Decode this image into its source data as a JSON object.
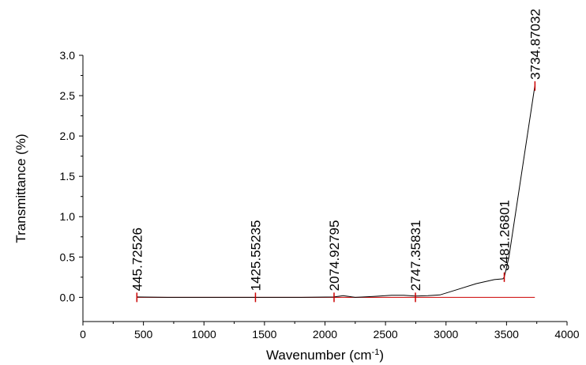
{
  "chart_data": {
    "type": "line",
    "xlabel": "Wavenumber (cm",
    "xlabel_sup": "-1",
    "xlabel_end": ")",
    "ylabel": "Transmittance (%)",
    "xlim": [
      0,
      4000
    ],
    "ylim": [
      -0.3,
      3.0
    ],
    "x_ticks": [
      0,
      500,
      1000,
      1500,
      2000,
      2500,
      3000,
      3500,
      4000
    ],
    "y_ticks": [
      0.0,
      0.5,
      1.0,
      1.5,
      2.0,
      2.5,
      3.0
    ],
    "x_tick_labels": [
      "0",
      "500",
      "1000",
      "1500",
      "2000",
      "2500",
      "3000",
      "3500",
      "4000"
    ],
    "y_tick_labels": [
      "0.0",
      "0.5",
      "1.0",
      "1.5",
      "2.0",
      "2.5",
      "3.0"
    ],
    "grid": false,
    "series": [
      {
        "color": "#000000",
        "x": [
          445,
          700,
          1000,
          1425,
          1800,
          2075,
          2150,
          2250,
          2400,
          2550,
          2650,
          2747,
          2850,
          2950,
          3100,
          3250,
          3400,
          3470,
          3481,
          3520,
          3734
        ],
        "y": [
          0.005,
          0.0,
          0.0,
          0.0,
          0.0,
          0.005,
          0.02,
          0.0,
          0.01,
          0.025,
          0.025,
          0.015,
          0.02,
          0.03,
          0.1,
          0.17,
          0.22,
          0.23,
          0.25,
          0.5,
          2.62
        ]
      }
    ],
    "baseline": {
      "color": "#cc0000",
      "x": [
        445,
        3734
      ],
      "y": 0.0
    },
    "peaks": [
      {
        "x": 445.72526,
        "label": "445.72526",
        "y": 0.0
      },
      {
        "x": 1425.55235,
        "label": "1425.55235",
        "y": 0.0
      },
      {
        "x": 2074.92795,
        "label": "2074.92795",
        "y": 0.0
      },
      {
        "x": 2747.35831,
        "label": "2747.35831",
        "y": 0.0
      },
      {
        "x": 3481.26801,
        "label": "3481.26801",
        "y": 0.25
      },
      {
        "x": 3734.87032,
        "label": "3734.87032",
        "y": 2.62
      }
    ],
    "peak_marker_color": "#cc0000"
  }
}
